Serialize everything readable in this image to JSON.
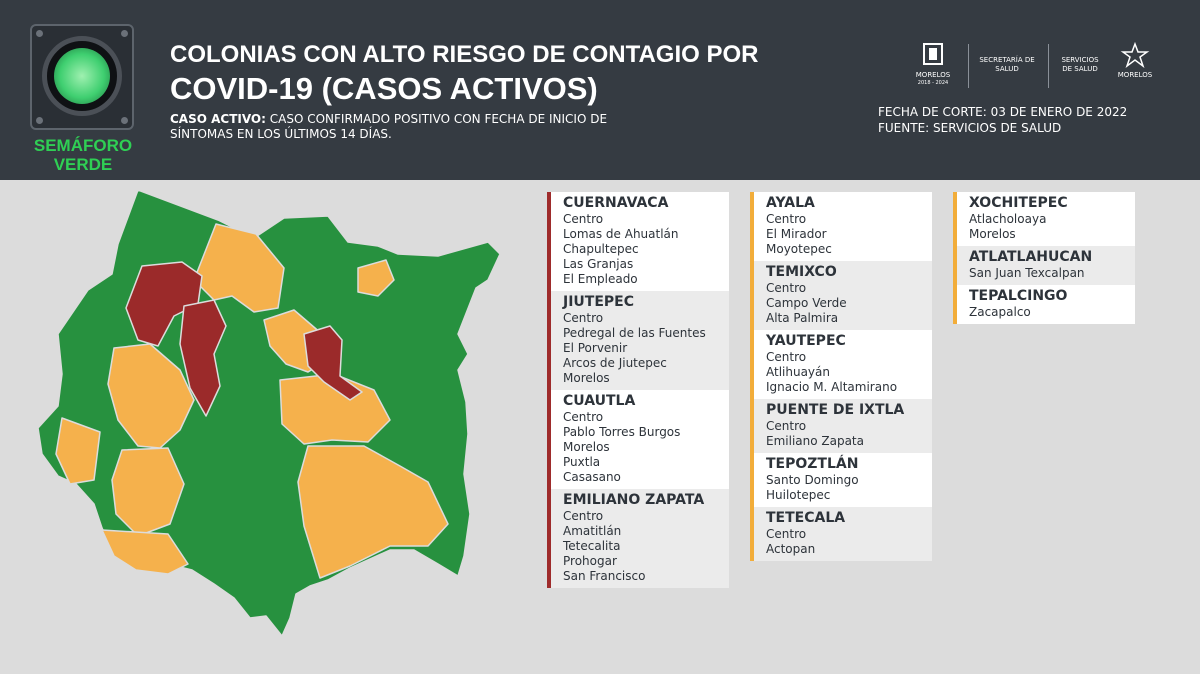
{
  "header": {
    "semaforo_label": "SEMÁFORO VERDE",
    "title_line1": "COLONIAS CON ALTO RIESGO DE CONTAGIO POR",
    "title_line2": "COVID-19 (CASOS ACTIVOS)",
    "subtitle_bold": "CASO ACTIVO:",
    "subtitle_rest": " CASO CONFIRMADO POSITIVO CON FECHA DE INICIO DE SÍNTOMAS EN LOS ÚLTIMOS 14 DÍAS.",
    "fecha_corte": "FECHA DE CORTE: 03 DE ENERO DE 2022",
    "fuente": "FUENTE: SERVICIOS DE SALUD",
    "logos": {
      "morelos": "MORELOS",
      "morelos_years": "2018 - 2024",
      "secretaria": "SECRETARÍA DE SALUD",
      "servicios": "SERVICIOS DE SALUD",
      "servicios_sub": "MORELOS"
    }
  },
  "colors": {
    "green": "#27913f",
    "orange": "#f5b14c",
    "red": "#9b2a2a",
    "header": "#353b42"
  },
  "municipios": {
    "col1": [
      {
        "name": "CUERNAVACA",
        "level": "red",
        "colonias": [
          "Centro",
          "Lomas de Ahuatlán",
          "Chapultepec",
          "Las Granjas",
          "El Empleado"
        ]
      },
      {
        "name": "JIUTEPEC",
        "level": "red",
        "colonias": [
          "Centro",
          "Pedregal de las Fuentes",
          "El Porvenir",
          "Arcos de Jiutepec",
          "Morelos"
        ]
      },
      {
        "name": "CUAUTLA",
        "level": "red",
        "colonias": [
          "Centro",
          "Pablo Torres Burgos",
          "Morelos",
          "Puxtla",
          "Casasano"
        ]
      },
      {
        "name": "EMILIANO ZAPATA",
        "level": "red",
        "colonias": [
          "Centro",
          "Amatitlán",
          "Tetecalita",
          "Prohogar",
          "San Francisco"
        ]
      }
    ],
    "col2": [
      {
        "name": "AYALA",
        "level": "orange",
        "colonias": [
          "Centro",
          "El Mirador",
          "Moyotepec"
        ]
      },
      {
        "name": "TEMIXCO",
        "level": "orange",
        "colonias": [
          "Centro",
          "Campo Verde",
          "Alta Palmira"
        ]
      },
      {
        "name": "YAUTEPEC",
        "level": "orange",
        "colonias": [
          "Centro",
          "Atlihuayán",
          "Ignacio M. Altamirano"
        ]
      },
      {
        "name": "PUENTE DE IXTLA",
        "level": "orange",
        "colonias": [
          "Centro",
          "Emiliano Zapata"
        ]
      },
      {
        "name": "TEPOZTLÁN",
        "level": "orange",
        "colonias": [
          "Santo Domingo",
          "Huilotepec"
        ]
      },
      {
        "name": "TETECALA",
        "level": "orange",
        "colonias": [
          "Centro",
          "Actopan"
        ]
      }
    ],
    "col3": [
      {
        "name": "XOCHITEPEC",
        "level": "orange",
        "colonias": [
          "Atlacholoaya",
          "Morelos"
        ]
      },
      {
        "name": "ATLATLAHUCAN",
        "level": "orange",
        "colonias": [
          "San Juan Texcalpan"
        ]
      },
      {
        "name": "TEPALCINGO",
        "level": "orange",
        "colonias": [
          "Zacapalco"
        ]
      }
    ]
  }
}
